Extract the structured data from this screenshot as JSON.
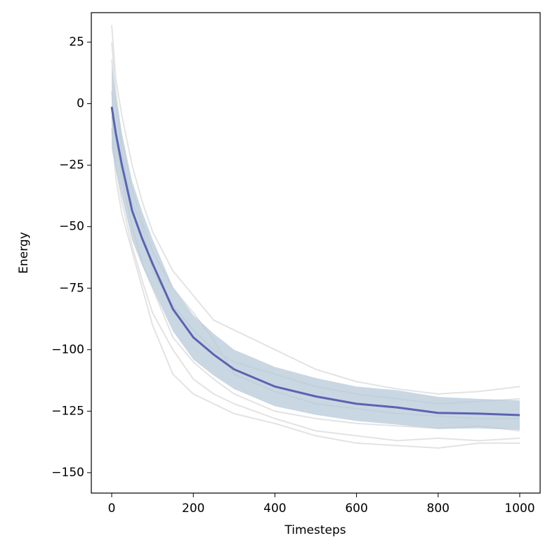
{
  "chart_data": {
    "type": "line",
    "xlabel": "Timesteps",
    "ylabel": "Energy",
    "x": [
      0,
      10,
      25,
      50,
      75,
      100,
      150,
      200,
      250,
      300,
      400,
      500,
      600,
      700,
      800,
      900,
      1000
    ],
    "mean": {
      "color": "#5b63b0",
      "values": [
        -1.3,
        -12,
        -25,
        -43.5,
        -55,
        -65,
        -83.5,
        -95,
        -102,
        -108,
        -115,
        -119,
        -122,
        -123.5,
        -125.7,
        -126,
        -126.6
      ]
    },
    "error": {
      "color": "#b7c9da",
      "values": [
        17,
        15,
        13,
        12,
        11,
        10,
        9,
        9,
        8.5,
        8,
        8,
        7.5,
        7,
        7,
        6.5,
        6,
        6
      ]
    },
    "series": [
      {
        "color": "#e3e3e3",
        "values": [
          32,
          10,
          -5,
          -25,
          -40,
          -52,
          -68,
          -78,
          -88,
          -92,
          -100,
          -108,
          -113,
          -116,
          -118,
          -117,
          -115
        ]
      },
      {
        "color": "#e3e3e3",
        "values": [
          18,
          0,
          -20,
          -40,
          -50,
          -68,
          -82,
          -92,
          -100,
          -105,
          -110,
          -115,
          -118,
          -120,
          -122,
          -121,
          -120
        ]
      },
      {
        "color": "#e3e3e3",
        "values": [
          5,
          -15,
          -30,
          -50,
          -65,
          -75,
          -95,
          -105,
          -112,
          -118,
          -125,
          -128,
          -130,
          -131,
          -132,
          -131,
          -133
        ]
      },
      {
        "color": "#e3e3e3",
        "values": [
          -5,
          -25,
          -40,
          -58,
          -72,
          -85,
          -100,
          -112,
          -118,
          -122,
          -128,
          -133,
          -135,
          -137,
          -136,
          -137,
          -136
        ]
      },
      {
        "color": "#e3e3e3",
        "values": [
          25,
          5,
          -15,
          -35,
          -48,
          -60,
          -75,
          -85,
          -96,
          -110,
          -117,
          -122,
          -124,
          -126,
          -127,
          -128,
          -128
        ]
      },
      {
        "color": "#e3e3e3",
        "values": [
          -10,
          -30,
          -45,
          -60,
          -75,
          -90,
          -110,
          -118,
          -122,
          -126,
          -130,
          -135,
          -138,
          -139,
          -140,
          -138,
          -138
        ]
      }
    ],
    "xlim": [
      -50,
      1050
    ],
    "ylim": [
      -158.3,
      37
    ],
    "xticks": [
      0,
      200,
      400,
      600,
      800,
      1000
    ],
    "yticks": [
      {
        "value": -150,
        "label": "−150"
      },
      {
        "value": -125,
        "label": "−125"
      },
      {
        "value": -100,
        "label": "−100"
      },
      {
        "value": -75,
        "label": "−75"
      },
      {
        "value": -50,
        "label": "−50"
      },
      {
        "value": -25,
        "label": "−25"
      },
      0,
      25
    ]
  }
}
